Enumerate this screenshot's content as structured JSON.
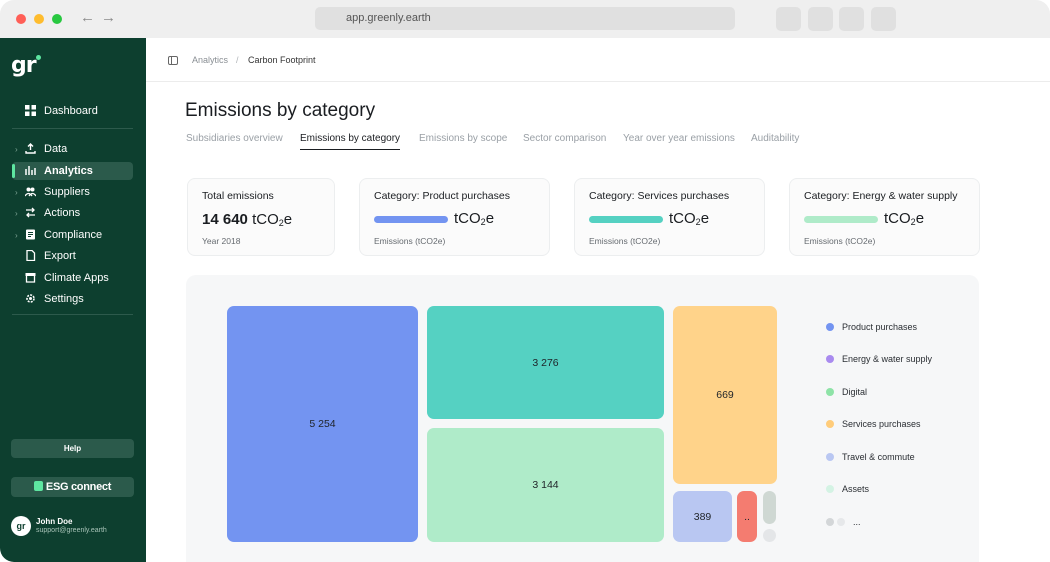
{
  "browser": {
    "url": "app.greenly.earth"
  },
  "sidebar": {
    "logo": "gr",
    "items": [
      {
        "label": "Dashboard",
        "icon": "grid-icon"
      },
      {
        "label": "Data",
        "icon": "upload-icon"
      },
      {
        "label": "Analytics",
        "icon": "chart-icon",
        "active": true
      },
      {
        "label": "Suppliers",
        "icon": "people-icon"
      },
      {
        "label": "Actions",
        "icon": "arrows-icon"
      },
      {
        "label": "Compliance",
        "icon": "document-icon"
      },
      {
        "label": "Export",
        "icon": "file-icon"
      },
      {
        "label": "Climate Apps",
        "icon": "store-icon"
      },
      {
        "label": "Settings",
        "icon": "gear-icon"
      }
    ],
    "help_label": "Help",
    "esg_label": "ESG connect",
    "user": {
      "initials": "gr",
      "name": "John Doe",
      "email": "support@greenly.earth"
    }
  },
  "breadcrumb": {
    "parent": "Analytics",
    "separator": "/",
    "current": "Carbon Footprint"
  },
  "page": {
    "title": "Emissions by category",
    "tabs": [
      {
        "label": "Subsidiaries overview"
      },
      {
        "label": "Emissions by category",
        "active": true
      },
      {
        "label": "Emissions by scope"
      },
      {
        "label": "Sector comparison"
      },
      {
        "label": "Year over year emissions"
      },
      {
        "label": "Auditability"
      }
    ]
  },
  "cards": {
    "total": {
      "title": "Total emissions",
      "value": "14 640",
      "unit": "tCO",
      "unit_sub": "2",
      "unit_suffix": "e",
      "sub": "Year 2018"
    },
    "product": {
      "title": "Category: Product purchases",
      "unit": "tCO",
      "unit_sub": "2",
      "unit_suffix": "e",
      "sub": "Emissions (tCO2e)",
      "color": "#7394f1"
    },
    "services": {
      "title": "Category: Services purchases",
      "unit": "tCO",
      "unit_sub": "2",
      "unit_suffix": "e",
      "sub": "Emissions (tCO2e)",
      "color": "#55d1c2"
    },
    "energy": {
      "title": "Category: Energy & water supply",
      "unit": "tCO",
      "unit_sub": "2",
      "unit_suffix": "e",
      "sub": "Emissions (tCO2e)",
      "color": "#afebc9"
    }
  },
  "treemap": {
    "tiles": [
      {
        "label": "5 254",
        "color": "#7394f1"
      },
      {
        "label": "3 276",
        "color": "#55d1c2"
      },
      {
        "label": "3 144",
        "color": "#afebc9"
      },
      {
        "label": "669",
        "color": "#ffd38a"
      },
      {
        "label": "389",
        "color": "#b9c7f2"
      },
      {
        "label": "..",
        "color": "#f47c70"
      },
      {
        "label": "",
        "color": "#cfd8d3"
      },
      {
        "label": "",
        "color": "#e4e6e8"
      }
    ],
    "legend": [
      {
        "label": "Product purchases",
        "color": "#7394f1"
      },
      {
        "label": "Energy & water supply",
        "color": "#a98bef"
      },
      {
        "label": "Digital",
        "color": "#8ee3a7"
      },
      {
        "label": "Services purchases",
        "color": "#ffcc7a"
      },
      {
        "label": "Travel & commute",
        "color": "#b9c7f2"
      },
      {
        "label": "Assets",
        "color": "#d4f3e4"
      },
      {
        "label": "...",
        "color": "#d3d6d8",
        "color2": "#e6e8ea"
      }
    ]
  }
}
